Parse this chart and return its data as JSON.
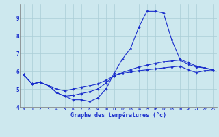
{
  "xlabel": "Graphe des températures (°c)",
  "background_color": "#cde8ee",
  "line_color": "#1a2ecc",
  "grid_color": "#aacdd6",
  "x_hours": [
    0,
    1,
    2,
    3,
    4,
    5,
    6,
    7,
    8,
    9,
    10,
    11,
    12,
    13,
    14,
    15,
    16,
    17,
    18,
    19,
    20,
    21,
    22,
    23
  ],
  "line1": [
    5.8,
    5.3,
    5.4,
    5.2,
    4.8,
    4.6,
    4.4,
    4.4,
    4.3,
    4.5,
    5.0,
    5.9,
    6.7,
    7.3,
    8.5,
    9.4,
    9.4,
    9.3,
    7.8,
    6.7,
    6.5,
    6.3,
    6.2,
    6.1
  ],
  "line2": [
    5.8,
    5.3,
    5.4,
    5.2,
    4.8,
    4.6,
    4.65,
    4.75,
    4.85,
    5.0,
    5.35,
    5.75,
    5.95,
    6.1,
    6.25,
    6.35,
    6.45,
    6.55,
    6.6,
    6.65,
    6.4,
    6.25,
    6.2,
    6.1
  ],
  "line3": [
    5.8,
    5.3,
    5.4,
    5.2,
    5.0,
    4.9,
    5.0,
    5.1,
    5.2,
    5.3,
    5.5,
    5.75,
    5.9,
    5.98,
    6.05,
    6.1,
    6.15,
    6.2,
    6.25,
    6.3,
    6.1,
    5.95,
    6.05,
    6.1
  ],
  "ylim": [
    4.0,
    9.8
  ],
  "xlim": [
    -0.5,
    23.5
  ],
  "yticks": [
    4,
    5,
    6,
    7,
    8,
    9
  ],
  "xticks": [
    0,
    1,
    2,
    3,
    4,
    5,
    6,
    7,
    8,
    9,
    10,
    11,
    12,
    13,
    14,
    15,
    16,
    17,
    18,
    19,
    20,
    21,
    22,
    23
  ],
  "figsize": [
    3.2,
    2.0
  ],
  "dpi": 100
}
